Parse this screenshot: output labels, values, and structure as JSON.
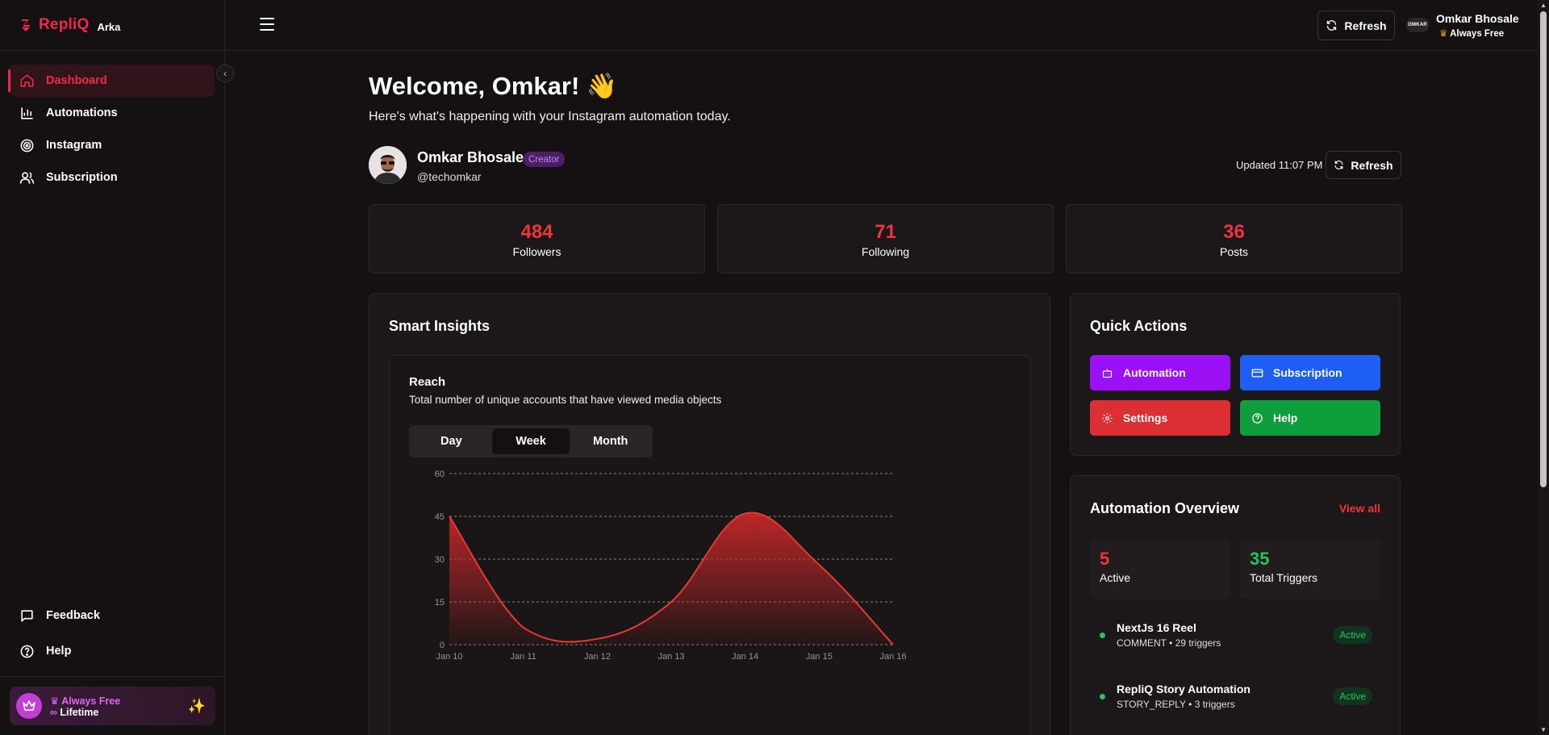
{
  "app": {
    "name": "RepliQ",
    "sub": "Arka"
  },
  "sidebar": {
    "items": [
      {
        "label": "Dashboard"
      },
      {
        "label": "Automations"
      },
      {
        "label": "Instagram"
      },
      {
        "label": "Subscription"
      }
    ],
    "bottom": [
      {
        "label": "Feedback"
      },
      {
        "label": "Help"
      }
    ],
    "plan": {
      "title": "Always Free",
      "duration": "Lifetime"
    }
  },
  "topbar": {
    "refresh_label": "Refresh",
    "avatar_text": "OMKAR",
    "user_name": "Omkar Bhosale",
    "user_plan": "Always Free"
  },
  "main": {
    "welcome": "Welcome, Omkar! 👋",
    "subtitle": "Here's what's happening with your Instagram automation today.",
    "profile": {
      "name": "Omkar Bhosale",
      "badge": "Creator",
      "handle": "@techomkar"
    },
    "updated": "Updated 11:07 PM",
    "refresh_label": "Refresh",
    "stats": [
      {
        "value": "484",
        "label": "Followers"
      },
      {
        "value": "71",
        "label": "Following"
      },
      {
        "value": "36",
        "label": "Posts"
      }
    ]
  },
  "insights": {
    "title": "Smart Insights",
    "reach_title": "Reach",
    "reach_sub": "Total number of unique accounts that have viewed media objects",
    "tabs": [
      {
        "label": "Day"
      },
      {
        "label": "Week"
      },
      {
        "label": "Month"
      }
    ],
    "active_tab": "Week"
  },
  "chart_data": {
    "type": "area",
    "title": "Reach",
    "categories": [
      "Jan 10",
      "Jan 11",
      "Jan 12",
      "Jan 13",
      "Jan 14",
      "Jan 15",
      "Jan 16"
    ],
    "values": [
      45,
      6,
      2,
      15,
      46,
      28,
      0
    ],
    "yticks": [
      0,
      15,
      30,
      45,
      60
    ],
    "ylim": [
      0,
      60
    ],
    "grid": true,
    "color": "#e53935"
  },
  "quick_actions": {
    "title": "Quick Actions",
    "buttons": [
      {
        "label": "Automation",
        "color": "#9b10f5"
      },
      {
        "label": "Subscription",
        "color": "#1f5ef2"
      },
      {
        "label": "Settings",
        "color": "#dc2f33"
      },
      {
        "label": "Help",
        "color": "#0f9e3c"
      }
    ]
  },
  "overview": {
    "title": "Automation Overview",
    "view_all": "View all",
    "active": {
      "value": "5",
      "label": "Active",
      "color": "#ef3340"
    },
    "triggers": {
      "value": "35",
      "label": "Total Triggers",
      "color": "#22c55e"
    },
    "automations": [
      {
        "name": "NextJs 16 Reel",
        "meta": "COMMENT • 29 triggers",
        "status": "Active"
      },
      {
        "name": "RepliQ Story Automation",
        "meta": "STORY_REPLY • 3 triggers",
        "status": "Active"
      }
    ]
  }
}
